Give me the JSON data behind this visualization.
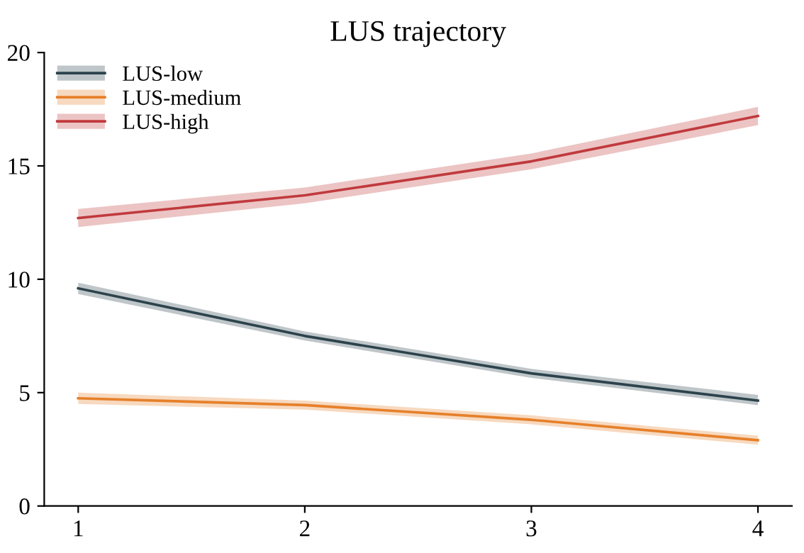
{
  "chart_data": {
    "type": "line",
    "title": "LUS trajectory",
    "x": [
      1,
      2,
      3,
      4
    ],
    "series": [
      {
        "name": "LUS-low",
        "color": "#2c434c",
        "values": [
          9.6,
          7.5,
          5.85,
          4.65
        ],
        "lower": [
          9.35,
          7.3,
          5.65,
          4.45
        ],
        "upper": [
          9.85,
          7.7,
          6.05,
          4.9
        ]
      },
      {
        "name": "LUS-medium",
        "color": "#e6802a",
        "values": [
          4.75,
          4.45,
          3.8,
          2.9
        ],
        "lower": [
          4.5,
          4.25,
          3.6,
          2.7
        ],
        "upper": [
          5.0,
          4.65,
          4.0,
          3.1
        ]
      },
      {
        "name": "LUS-high",
        "color": "#c03a3d",
        "values": [
          12.7,
          13.7,
          15.2,
          17.2
        ],
        "lower": [
          12.3,
          13.35,
          14.85,
          16.8
        ],
        "upper": [
          13.1,
          14.05,
          15.55,
          17.6
        ]
      }
    ],
    "xlim": [
      0.85,
      4.15
    ],
    "ylim": [
      0,
      20
    ],
    "xticks": [
      1,
      2,
      3,
      4
    ],
    "yticks": [
      0,
      5,
      10,
      15,
      20
    ],
    "grid": false,
    "legend": "top left",
    "marker": "none",
    "line_style": "solid"
  }
}
